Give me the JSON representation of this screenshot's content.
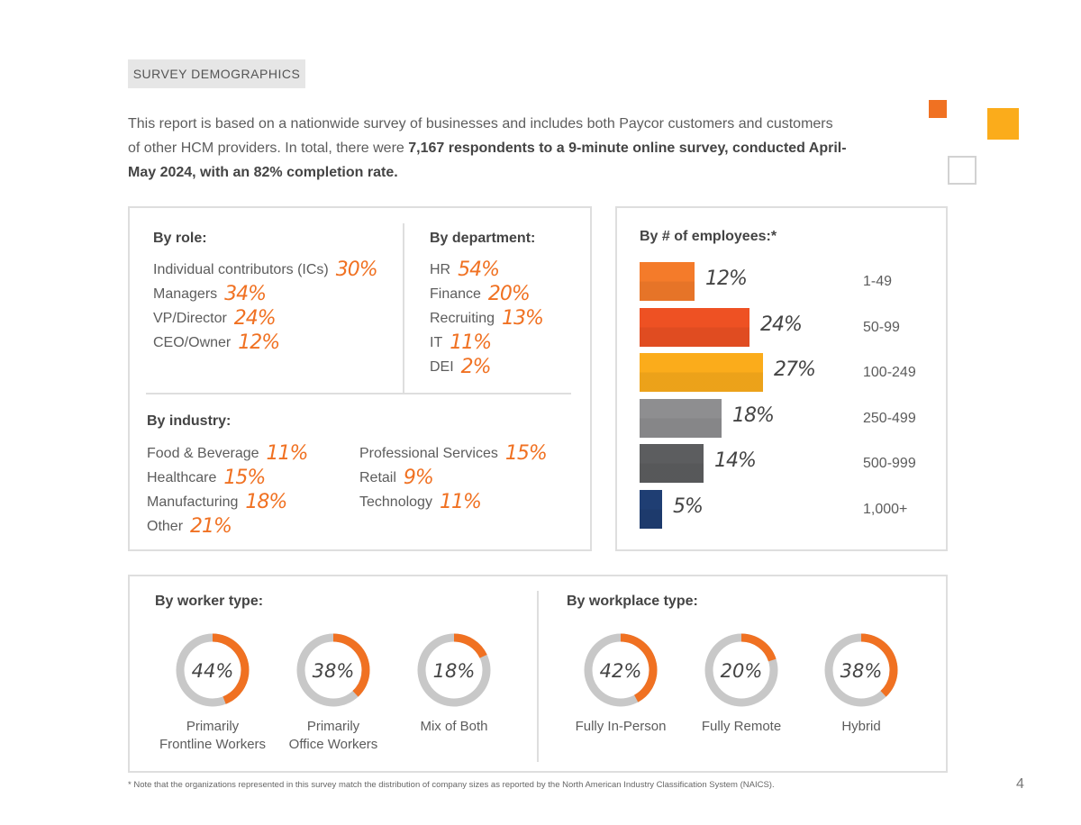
{
  "header": {
    "tag": "SURVEY DEMOGRAPHICS"
  },
  "intro": {
    "part1": "This report is based on a nationwide survey of businesses and includes both Paycor customers and customers of other HCM providers. In total, there were ",
    "bold": "7,167 respondents to a 9-minute online survey, conducted April-May 2024, with an 82% completion rate."
  },
  "role": {
    "title": "By role:",
    "items": [
      {
        "label": "Individual contributors (ICs)",
        "pct": "30%"
      },
      {
        "label": "Managers",
        "pct": "34%"
      },
      {
        "label": "VP/Director",
        "pct": "24%"
      },
      {
        "label": "CEO/Owner",
        "pct": "12%"
      }
    ]
  },
  "department": {
    "title": "By department:",
    "items": [
      {
        "label": "HR",
        "pct": "54%"
      },
      {
        "label": "Finance",
        "pct": "20%"
      },
      {
        "label": "Recruiting",
        "pct": "13%"
      },
      {
        "label": "IT",
        "pct": "11%"
      },
      {
        "label": "DEI",
        "pct": "2%"
      }
    ]
  },
  "industry": {
    "title": "By industry:",
    "items": [
      {
        "label": "Food & Beverage",
        "pct": "11%"
      },
      {
        "label": "Healthcare",
        "pct": "15%"
      },
      {
        "label": "Manufacturing",
        "pct": "18%"
      },
      {
        "label": "Other",
        "pct": "21%"
      },
      {
        "label": "Professional Services",
        "pct": "15%"
      },
      {
        "label": "Retail",
        "pct": "9%"
      },
      {
        "label": "Technology",
        "pct": "11%"
      }
    ]
  },
  "employees": {
    "title": "By # of employees:*",
    "items": [
      {
        "range": "1-49",
        "value": 12,
        "pct": "12%",
        "color": "#f47b2a"
      },
      {
        "range": "50-99",
        "value": 24,
        "pct": "24%",
        "color": "#ee5123"
      },
      {
        "range": "100-249",
        "value": 27,
        "pct": "27%",
        "color": "#fbac1b"
      },
      {
        "range": "250-499",
        "value": 18,
        "pct": "18%",
        "color": "#8e8e90"
      },
      {
        "range": "500-999",
        "value": 14,
        "pct": "14%",
        "color": "#5c5d5f"
      },
      {
        "range": "1,000+",
        "value": 5,
        "pct": "5%",
        "color": "#1f3e73"
      }
    ]
  },
  "worker": {
    "title": "By worker type:",
    "items": [
      {
        "label1": "Primarily",
        "label2": "Frontline Workers",
        "value": 44,
        "pct": "44%"
      },
      {
        "label1": "Primarily",
        "label2": "Office Workers",
        "value": 38,
        "pct": "38%"
      },
      {
        "label1": "Mix of Both",
        "label2": "",
        "value": 18,
        "pct": "18%"
      }
    ]
  },
  "workplace": {
    "title": "By workplace type:",
    "items": [
      {
        "label1": "Fully In-Person",
        "label2": "",
        "value": 42,
        "pct": "42%"
      },
      {
        "label1": "Fully Remote",
        "label2": "",
        "value": 20,
        "pct": "20%"
      },
      {
        "label1": "Hybrid",
        "label2": "",
        "value": 38,
        "pct": "38%"
      }
    ]
  },
  "colors": {
    "accent": "#f07122",
    "ring_bg": "#c8c8c8"
  },
  "footer": {
    "note": "* Note that the organizations represented in this survey match the distribution of company sizes as reported by the North American Industry Classification System (NAICS).",
    "page": "4"
  }
}
